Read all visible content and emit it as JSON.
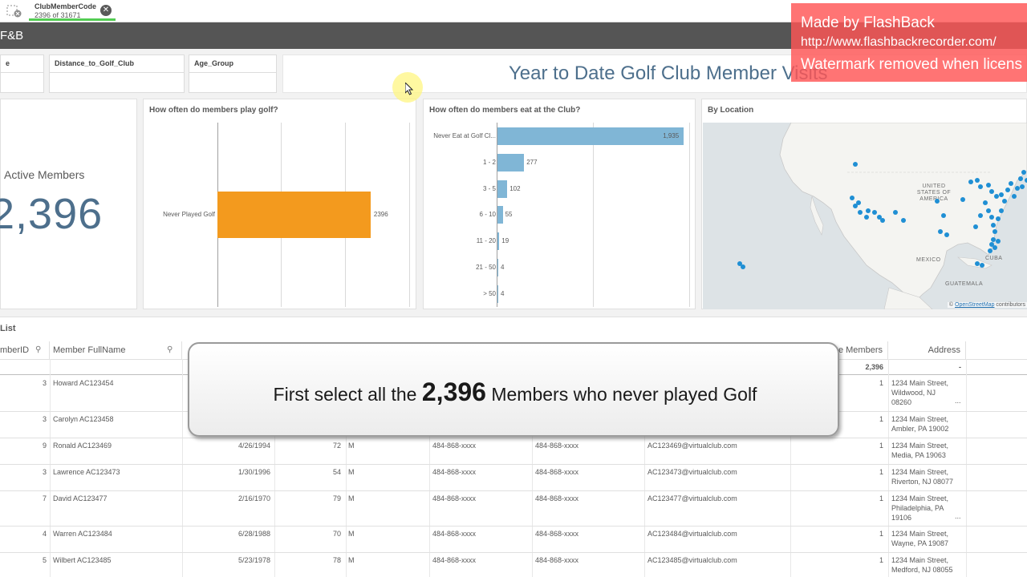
{
  "selection": {
    "field": "ClubMemberCode",
    "count": "2396 of 31671"
  },
  "header": {
    "title": "F&B"
  },
  "filters": [
    {
      "label": "e"
    },
    {
      "label": "Distance_to_Golf_Club"
    },
    {
      "label": "Age_Group"
    }
  ],
  "dashboard_title": "Year to Date Golf Club Member Visits",
  "kpi": {
    "label": "Active Members",
    "value": "2,396"
  },
  "chart_play": {
    "title": "How often do members play golf?",
    "chart_data": {
      "type": "bar",
      "orientation": "horizontal",
      "categories": [
        "Never Played Golf"
      ],
      "values": [
        2396
      ],
      "color": "#f39a1e"
    }
  },
  "chart_eat": {
    "title": "How often do members eat at the Club?",
    "chart_data": {
      "type": "bar",
      "orientation": "horizontal",
      "categories": [
        "Never Eat at Golf Cl...",
        "1 - 2",
        "3 - 5",
        "6 - 10",
        "11 - 20",
        "21 - 50",
        "> 50"
      ],
      "values": [
        1935,
        277,
        102,
        55,
        19,
        4,
        4
      ],
      "value_labels": [
        "1,935",
        "277",
        "102",
        "55",
        "19",
        "4",
        "4"
      ],
      "color": "#80b6d6"
    }
  },
  "map": {
    "title": "By Location",
    "labels": {
      "usa": "UNITED STATES OF AMERICA",
      "mexico": "MEXICO",
      "cuba": "CUBA",
      "guatemala": "GUATEMALA"
    },
    "attribution_prefix": "©",
    "attribution_link": "OpenStreetMap",
    "attribution_suffix": "contributors"
  },
  "table": {
    "title": "List",
    "headers": {
      "member_id": "mberID",
      "fullname": "Member FullName",
      "members": "e Members",
      "address": "Address"
    },
    "totals": {
      "members": "2,396",
      "address": "-"
    },
    "rows": [
      {
        "id": "3",
        "name": "Howard AC123454",
        "dob": "",
        "age": "",
        "gender": "",
        "phone1": "",
        "phone2": "",
        "email": "",
        "count": "1",
        "addr1": "1234 Main Street,",
        "addr2": "Wildwood, NJ",
        "addr3": "08260",
        "more": "..."
      },
      {
        "id": "3",
        "name": "Carolyn AC123458",
        "dob": "",
        "age": "",
        "gender": "",
        "phone1": "",
        "phone2": "",
        "email": "",
        "count": "1",
        "addr1": "1234 Main Street,",
        "addr2": "Ambler, PA 19002",
        "addr3": "",
        "more": ""
      },
      {
        "id": "9",
        "name": "Ronald AC123469",
        "dob": "4/26/1994",
        "age": "72",
        "gender": "M",
        "phone1": "484-868-xxxx",
        "phone2": "484-868-xxxx",
        "email": "AC123469@virtualclub.com",
        "count": "1",
        "addr1": "1234 Main Street,",
        "addr2": "Media, PA 19063",
        "addr3": "",
        "more": ""
      },
      {
        "id": "3",
        "name": "Lawrence AC123473",
        "dob": "1/30/1996",
        "age": "54",
        "gender": "M",
        "phone1": "484-868-xxxx",
        "phone2": "484-868-xxxx",
        "email": "AC123473@virtualclub.com",
        "count": "1",
        "addr1": "1234 Main Street,",
        "addr2": "Riverton, NJ 08077",
        "addr3": "",
        "more": ""
      },
      {
        "id": "7",
        "name": "David AC123477",
        "dob": "2/16/1970",
        "age": "79",
        "gender": "M",
        "phone1": "484-868-xxxx",
        "phone2": "484-868-xxxx",
        "email": "AC123477@virtualclub.com",
        "count": "1",
        "addr1": "1234 Main Street,",
        "addr2": "Philadelphia, PA",
        "addr3": "19106",
        "more": "..."
      },
      {
        "id": "4",
        "name": "Warren AC123484",
        "dob": "6/28/1988",
        "age": "70",
        "gender": "M",
        "phone1": "484-868-xxxx",
        "phone2": "484-868-xxxx",
        "email": "AC123484@virtualclub.com",
        "count": "1",
        "addr1": "1234 Main Street,",
        "addr2": "Wayne, PA 19087",
        "addr3": "",
        "more": ""
      },
      {
        "id": "5",
        "name": "Wilbert AC123485",
        "dob": "5/23/1978",
        "age": "78",
        "gender": "M",
        "phone1": "484-868-xxxx",
        "phone2": "484-868-xxxx",
        "email": "AC123485@virtualclub.com",
        "count": "1",
        "addr1": "1234 Main Street,",
        "addr2": "Medford, NJ 08055",
        "addr3": "",
        "more": ""
      }
    ]
  },
  "callout": {
    "before": "First select all the ",
    "number": "2,396",
    "after": " Members who never played Golf"
  },
  "watermark": {
    "line1": "Made by FlashBack",
    "line2": "http://www.flashbackrecorder.com/",
    "line3": "Watermark removed when licens"
  }
}
